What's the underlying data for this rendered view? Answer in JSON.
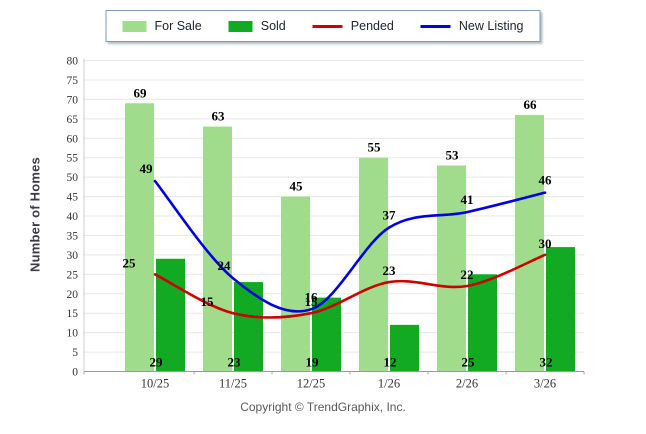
{
  "chart_data": {
    "type": "combo",
    "categories": [
      "10/25",
      "11/25",
      "12/25",
      "1/26",
      "2/26",
      "3/26"
    ],
    "series": [
      {
        "name": "For Sale",
        "type": "bar",
        "color": "#a0dc8c",
        "values": [
          69,
          63,
          45,
          55,
          53,
          66
        ]
      },
      {
        "name": "Sold",
        "type": "bar",
        "color": "#11aa22",
        "values": [
          29,
          23,
          19,
          12,
          25,
          32
        ]
      },
      {
        "name": "Pended",
        "type": "line",
        "color": "#cc0000",
        "values": [
          25,
          15,
          15,
          23,
          22,
          30
        ]
      },
      {
        "name": "New Listing",
        "type": "line",
        "color": "#0000e0",
        "values": [
          49,
          24,
          16,
          37,
          41,
          46
        ]
      }
    ],
    "title": "",
    "xlabel": "",
    "ylabel": "Number of Homes",
    "ylim": [
      0,
      80
    ],
    "ytick_step": 5,
    "grid": true,
    "legend_position": "top"
  },
  "footer": {
    "copyright": "Copyright © TrendGraphix, Inc."
  },
  "colors": {
    "grid_line": "#e7e7e7",
    "axis_line": "#9a9a9a",
    "left_axis_line": "#cccccc",
    "tick_label": "#333333",
    "legend_border": "#7f9db9",
    "copyright_text": "#59595c"
  }
}
